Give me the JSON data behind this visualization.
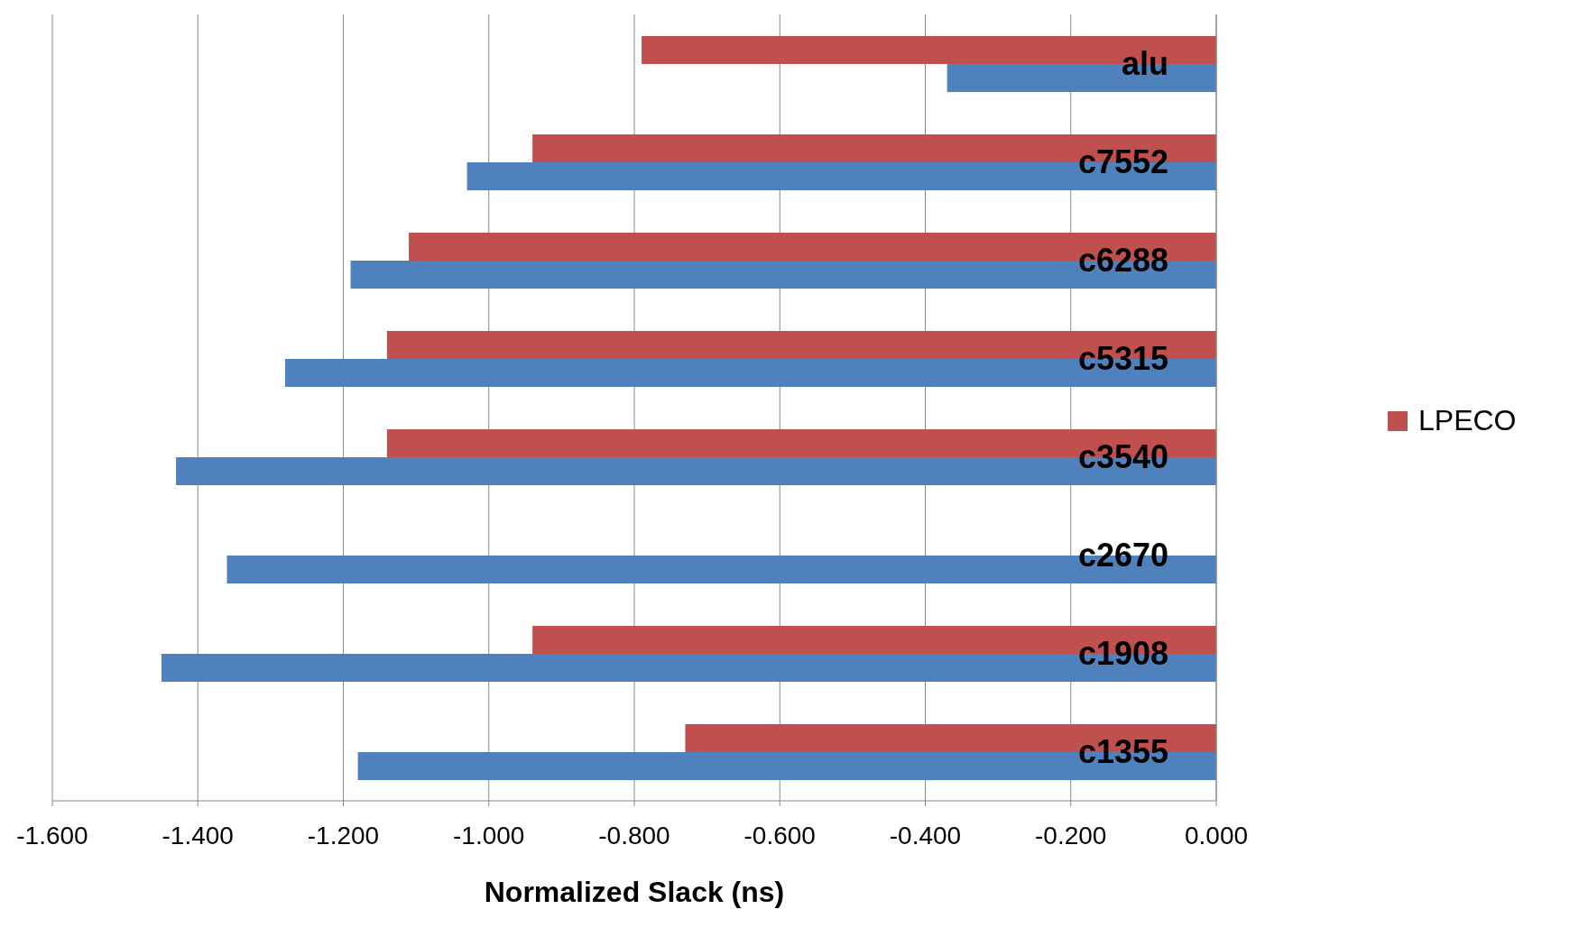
{
  "chart_data": {
    "type": "bar",
    "orientation": "horizontal",
    "xlabel": "Normalized Slack (ns)",
    "categories": [
      "alu",
      "c7552",
      "c6288",
      "c5315",
      "c3540",
      "c2670",
      "c1908",
      "c1355"
    ],
    "series": [
      {
        "name": "LPECO",
        "color": "#c0504d",
        "values": [
          -0.79,
          -0.94,
          -1.11,
          -1.14,
          -1.14,
          null,
          -0.94,
          -0.73
        ]
      },
      {
        "color": "#4f81bd",
        "values": [
          -0.37,
          -1.03,
          -1.19,
          -1.28,
          -1.43,
          -1.36,
          -1.45,
          -1.18
        ]
      }
    ],
    "xlim": [
      -1.6,
      0
    ],
    "xticks": [
      {
        "value": -1.6,
        "label": "-1.600"
      },
      {
        "value": -1.4,
        "label": "-1.400"
      },
      {
        "value": -1.2,
        "label": "-1.200"
      },
      {
        "value": -1.0,
        "label": "-1.000"
      },
      {
        "value": -0.8,
        "label": "-0.800"
      },
      {
        "value": -0.6,
        "label": "-0.600"
      },
      {
        "value": -0.4,
        "label": "-0.400"
      },
      {
        "value": -0.2,
        "label": "-0.200"
      },
      {
        "value": 0,
        "label": "0.000"
      }
    ],
    "grid": "x",
    "legend": "right"
  }
}
